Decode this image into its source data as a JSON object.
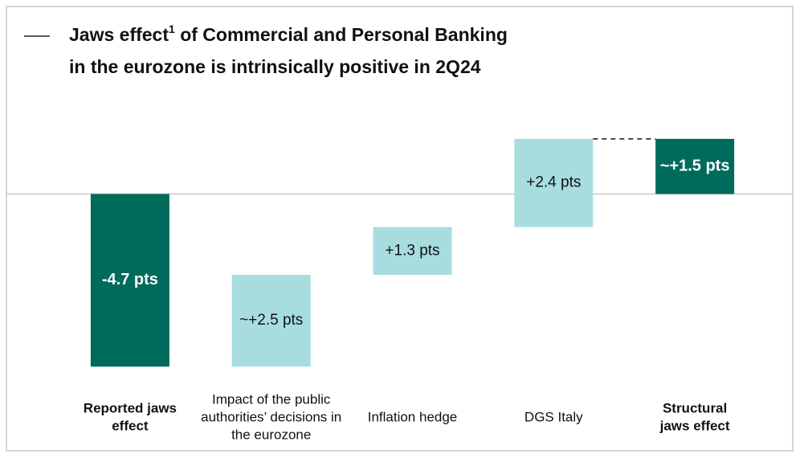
{
  "chart_data": {
    "type": "waterfall",
    "title_start": "Jaws effect",
    "title_footnote": "1",
    "title_rest": " of Commercial and Personal Banking",
    "title_line2": "in the eurozone is intrinsically positive in 2Q24",
    "categories": [
      [
        "Reported jaws",
        "effect"
      ],
      [
        "Impact of the public",
        "authorities’ decisions in",
        "the eurozone"
      ],
      [
        "Inflation hedge"
      ],
      [
        "DGS Italy"
      ],
      [
        "Structural",
        "jaws effect"
      ]
    ],
    "measure": [
      "absolute",
      "relative",
      "relative",
      "relative",
      "total"
    ],
    "values": [
      -4.7,
      2.5,
      1.3,
      2.4,
      1.5
    ],
    "value_labels": [
      "-4.7 pts",
      "~+2.5 pts",
      "+1.3 pts",
      "+2.4 pts",
      "~+1.5 pts"
    ],
    "colors": {
      "absolute": "#006a5b",
      "relative": "#a8dde0",
      "total": "#006a5b"
    },
    "ylim": [
      -5,
      2
    ]
  }
}
